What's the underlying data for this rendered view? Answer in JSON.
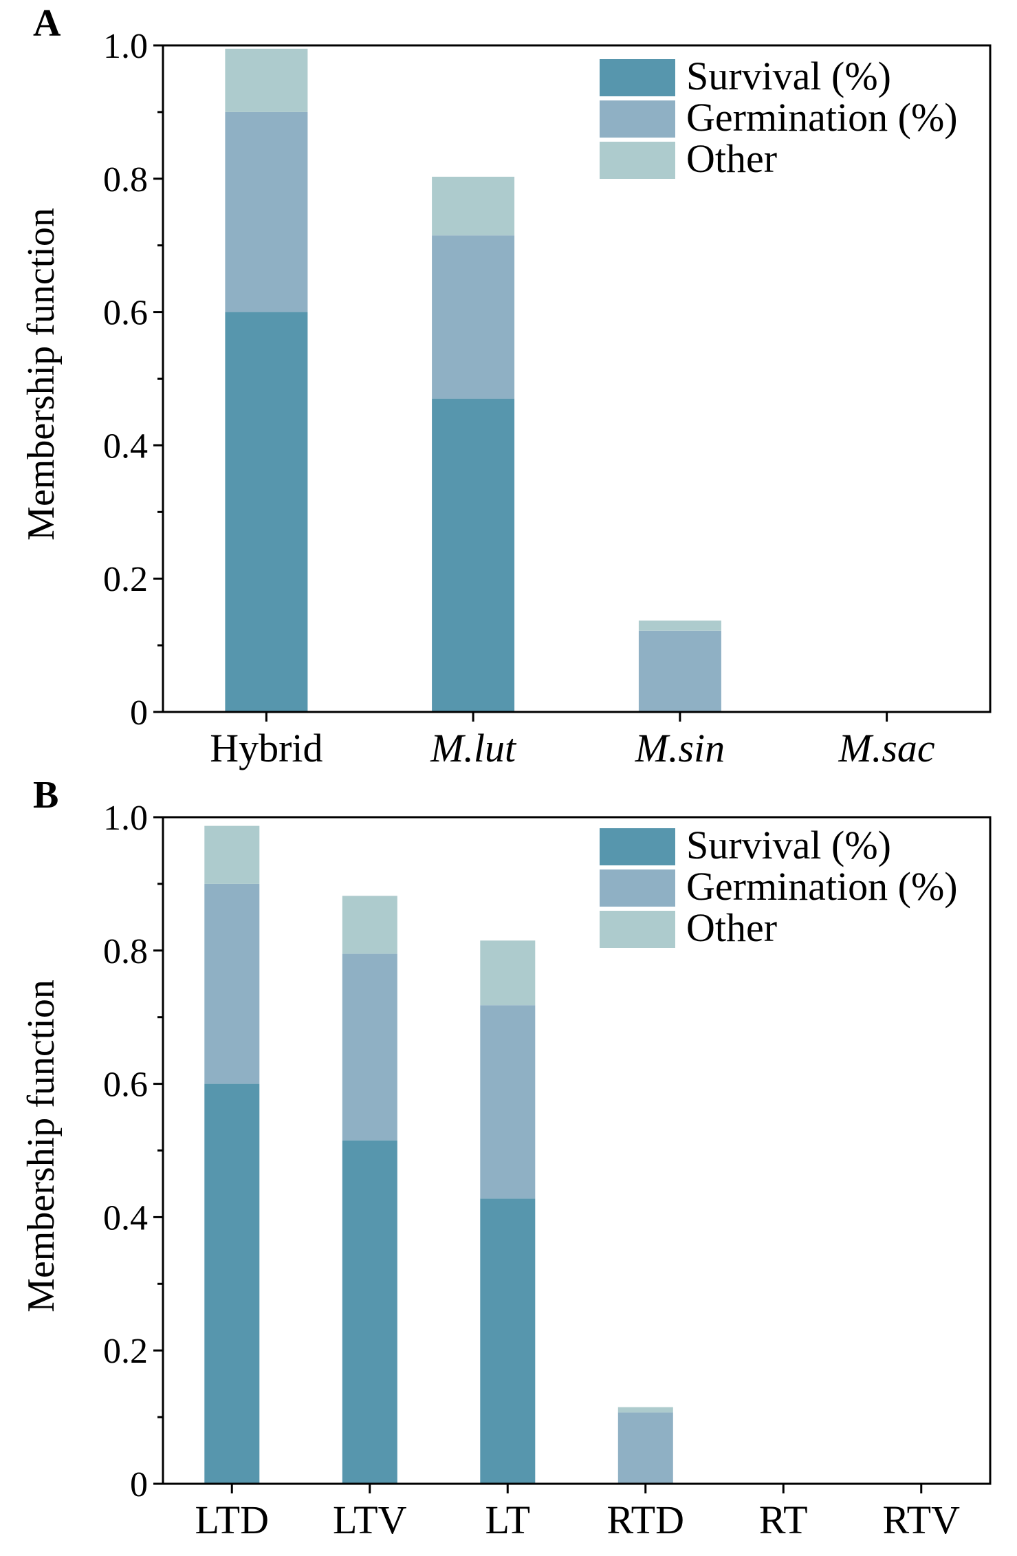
{
  "colors": {
    "survival": "#5796AD",
    "germination": "#8FB0C4",
    "other": "#ADCBCD",
    "axis": "#000000",
    "background": "#FFFFFF"
  },
  "chart_data": [
    {
      "type": "bar",
      "stacked": true,
      "panel": "A",
      "ylabel": "Membership function",
      "xlabel": "",
      "ylim": [
        0,
        1.0
      ],
      "yticks": [
        "0",
        "0.2",
        "0.4",
        "0.6",
        "0.8",
        "1.0"
      ],
      "ytick_values": [
        0,
        0.2,
        0.4,
        0.6,
        0.8,
        1.0
      ],
      "categories": [
        "Hybrid",
        "M.lut",
        "M.sin",
        "M.sac"
      ],
      "category_italic": [
        false,
        true,
        true,
        true
      ],
      "legend_position": "top-right",
      "series": [
        {
          "name": "Survival (%)",
          "values": [
            0.6,
            0.47,
            0.0,
            0.0
          ]
        },
        {
          "name": "Germination (%)",
          "values": [
            0.3,
            0.245,
            0.122,
            0.0
          ]
        },
        {
          "name": "Other",
          "values": [
            0.095,
            0.088,
            0.015,
            0.0
          ]
        }
      ]
    },
    {
      "type": "bar",
      "stacked": true,
      "panel": "B",
      "ylabel": "Membership function",
      "xlabel": "",
      "ylim": [
        0,
        1.0
      ],
      "yticks": [
        "0",
        "0.2",
        "0.4",
        "0.6",
        "0.8",
        "1.0"
      ],
      "ytick_values": [
        0,
        0.2,
        0.4,
        0.6,
        0.8,
        1.0
      ],
      "categories": [
        "LTD",
        "LTV",
        "LT",
        "RTD",
        "RT",
        "RTV"
      ],
      "category_italic": [
        false,
        false,
        false,
        false,
        false,
        false
      ],
      "legend_position": "top-right",
      "series": [
        {
          "name": "Survival (%)",
          "values": [
            0.6,
            0.515,
            0.428,
            0.0,
            0.0,
            0.0
          ]
        },
        {
          "name": "Germination (%)",
          "values": [
            0.3,
            0.28,
            0.29,
            0.107,
            0.0,
            0.0
          ]
        },
        {
          "name": "Other",
          "values": [
            0.087,
            0.087,
            0.097,
            0.008,
            0.0,
            0.0
          ]
        }
      ]
    }
  ]
}
